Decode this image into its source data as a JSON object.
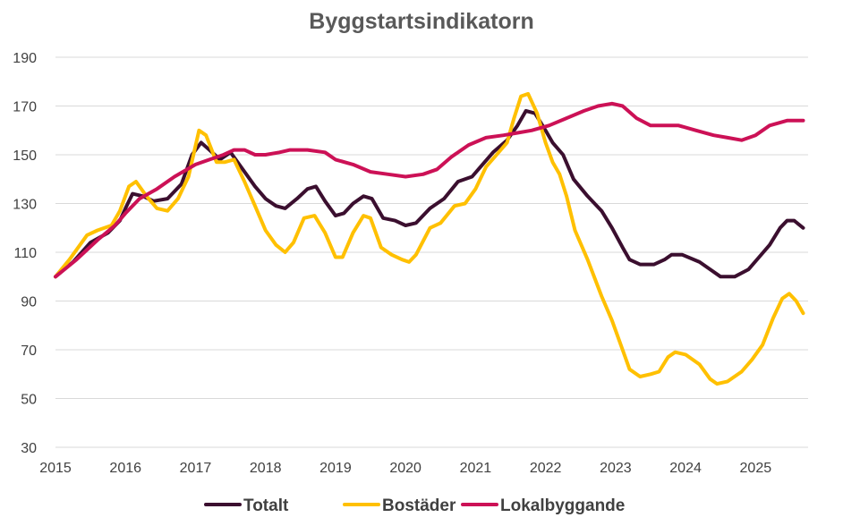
{
  "chart_data": {
    "type": "line",
    "title": "Byggstartsindikatorn",
    "xlabel": "",
    "ylabel": "",
    "xlim": [
      2015,
      2025.75
    ],
    "ylim": [
      30,
      190
    ],
    "yticks": [
      30,
      50,
      70,
      90,
      110,
      130,
      150,
      170,
      190
    ],
    "xticks": [
      "2015",
      "2016",
      "2017",
      "2018",
      "2019",
      "2020",
      "2021",
      "2022",
      "2023",
      "2024",
      "2025"
    ],
    "grid": true,
    "legend_position": "bottom",
    "series": [
      {
        "name": "Totalt",
        "color": "#3b0f2f",
        "points": [
          [
            2015.0,
            100
          ],
          [
            2015.25,
            106
          ],
          [
            2015.5,
            114
          ],
          [
            2015.75,
            118
          ],
          [
            2015.92,
            123
          ],
          [
            2016.0,
            128
          ],
          [
            2016.1,
            134
          ],
          [
            2016.25,
            133
          ],
          [
            2016.4,
            131
          ],
          [
            2016.6,
            132
          ],
          [
            2016.8,
            138
          ],
          [
            2016.95,
            150
          ],
          [
            2017.08,
            155
          ],
          [
            2017.2,
            152
          ],
          [
            2017.35,
            148
          ],
          [
            2017.5,
            151
          ],
          [
            2017.65,
            145
          ],
          [
            2017.85,
            137
          ],
          [
            2018.0,
            132
          ],
          [
            2018.15,
            129
          ],
          [
            2018.28,
            128
          ],
          [
            2018.45,
            132
          ],
          [
            2018.6,
            136
          ],
          [
            2018.72,
            137
          ],
          [
            2018.85,
            131
          ],
          [
            2019.0,
            125
          ],
          [
            2019.12,
            126
          ],
          [
            2019.25,
            130
          ],
          [
            2019.4,
            133
          ],
          [
            2019.52,
            132
          ],
          [
            2019.68,
            124
          ],
          [
            2019.85,
            123
          ],
          [
            2020.0,
            121
          ],
          [
            2020.15,
            122
          ],
          [
            2020.35,
            128
          ],
          [
            2020.55,
            132
          ],
          [
            2020.75,
            139
          ],
          [
            2020.95,
            141
          ],
          [
            2021.1,
            146
          ],
          [
            2021.25,
            151
          ],
          [
            2021.45,
            156
          ],
          [
            2021.6,
            162
          ],
          [
            2021.72,
            168
          ],
          [
            2021.85,
            167
          ],
          [
            2022.0,
            160
          ],
          [
            2022.1,
            155
          ],
          [
            2022.25,
            150
          ],
          [
            2022.4,
            140
          ],
          [
            2022.6,
            133
          ],
          [
            2022.8,
            127
          ],
          [
            2022.95,
            120
          ],
          [
            2023.1,
            112
          ],
          [
            2023.2,
            107
          ],
          [
            2023.35,
            105
          ],
          [
            2023.55,
            105
          ],
          [
            2023.7,
            107
          ],
          [
            2023.8,
            109
          ],
          [
            2023.95,
            109
          ],
          [
            2024.2,
            106
          ],
          [
            2024.35,
            103
          ],
          [
            2024.5,
            100
          ],
          [
            2024.7,
            100
          ],
          [
            2024.9,
            103
          ],
          [
            2025.05,
            108
          ],
          [
            2025.2,
            113
          ],
          [
            2025.35,
            120
          ],
          [
            2025.45,
            123
          ],
          [
            2025.55,
            123
          ],
          [
            2025.68,
            120
          ]
        ]
      },
      {
        "name": "Bostäder",
        "color": "#ffc000",
        "points": [
          [
            2015.0,
            100
          ],
          [
            2015.2,
            107
          ],
          [
            2015.45,
            117
          ],
          [
            2015.6,
            119
          ],
          [
            2015.8,
            121
          ],
          [
            2015.92,
            127
          ],
          [
            2016.05,
            137
          ],
          [
            2016.15,
            139
          ],
          [
            2016.3,
            133
          ],
          [
            2016.45,
            128
          ],
          [
            2016.6,
            127
          ],
          [
            2016.75,
            132
          ],
          [
            2016.9,
            141
          ],
          [
            2017.05,
            160
          ],
          [
            2017.15,
            158
          ],
          [
            2017.3,
            147
          ],
          [
            2017.42,
            147
          ],
          [
            2017.55,
            148
          ],
          [
            2017.7,
            139
          ],
          [
            2017.85,
            129
          ],
          [
            2018.0,
            119
          ],
          [
            2018.15,
            113
          ],
          [
            2018.28,
            110
          ],
          [
            2018.4,
            114
          ],
          [
            2018.55,
            124
          ],
          [
            2018.7,
            125
          ],
          [
            2018.85,
            118
          ],
          [
            2019.0,
            108
          ],
          [
            2019.1,
            108
          ],
          [
            2019.25,
            118
          ],
          [
            2019.4,
            125
          ],
          [
            2019.5,
            124
          ],
          [
            2019.65,
            112
          ],
          [
            2019.8,
            109
          ],
          [
            2019.95,
            107
          ],
          [
            2020.05,
            106
          ],
          [
            2020.15,
            109
          ],
          [
            2020.35,
            120
          ],
          [
            2020.5,
            122
          ],
          [
            2020.7,
            129
          ],
          [
            2020.85,
            130
          ],
          [
            2021.0,
            136
          ],
          [
            2021.15,
            145
          ],
          [
            2021.3,
            150
          ],
          [
            2021.45,
            155
          ],
          [
            2021.55,
            165
          ],
          [
            2021.65,
            174
          ],
          [
            2021.75,
            175
          ],
          [
            2021.88,
            167
          ],
          [
            2022.0,
            155
          ],
          [
            2022.1,
            147
          ],
          [
            2022.2,
            142
          ],
          [
            2022.3,
            133
          ],
          [
            2022.42,
            119
          ],
          [
            2022.6,
            107
          ],
          [
            2022.8,
            92
          ],
          [
            2022.95,
            82
          ],
          [
            2023.1,
            70
          ],
          [
            2023.2,
            62
          ],
          [
            2023.35,
            59
          ],
          [
            2023.5,
            60
          ],
          [
            2023.62,
            61
          ],
          [
            2023.75,
            67
          ],
          [
            2023.85,
            69
          ],
          [
            2024.0,
            68
          ],
          [
            2024.2,
            64
          ],
          [
            2024.35,
            58
          ],
          [
            2024.45,
            56
          ],
          [
            2024.6,
            57
          ],
          [
            2024.8,
            61
          ],
          [
            2024.95,
            66
          ],
          [
            2025.1,
            72
          ],
          [
            2025.25,
            83
          ],
          [
            2025.38,
            91
          ],
          [
            2025.48,
            93
          ],
          [
            2025.58,
            90
          ],
          [
            2025.68,
            85
          ]
        ]
      },
      {
        "name": "Lokalbyggande",
        "color": "#cc1156",
        "points": [
          [
            2015.0,
            100
          ],
          [
            2015.3,
            107
          ],
          [
            2015.6,
            115
          ],
          [
            2015.85,
            121
          ],
          [
            2016.0,
            126
          ],
          [
            2016.2,
            132
          ],
          [
            2016.45,
            136
          ],
          [
            2016.7,
            141
          ],
          [
            2017.0,
            146
          ],
          [
            2017.2,
            148
          ],
          [
            2017.4,
            150
          ],
          [
            2017.55,
            152
          ],
          [
            2017.7,
            152
          ],
          [
            2017.85,
            150
          ],
          [
            2018.0,
            150
          ],
          [
            2018.2,
            151
          ],
          [
            2018.35,
            152
          ],
          [
            2018.6,
            152
          ],
          [
            2018.85,
            151
          ],
          [
            2019.0,
            148
          ],
          [
            2019.25,
            146
          ],
          [
            2019.5,
            143
          ],
          [
            2019.75,
            142
          ],
          [
            2020.0,
            141
          ],
          [
            2020.25,
            142
          ],
          [
            2020.45,
            144
          ],
          [
            2020.65,
            149
          ],
          [
            2020.9,
            154
          ],
          [
            2021.15,
            157
          ],
          [
            2021.4,
            158
          ],
          [
            2021.6,
            159
          ],
          [
            2021.8,
            160
          ],
          [
            2022.05,
            162
          ],
          [
            2022.3,
            165
          ],
          [
            2022.55,
            168
          ],
          [
            2022.75,
            170
          ],
          [
            2022.95,
            171
          ],
          [
            2023.1,
            170
          ],
          [
            2023.3,
            165
          ],
          [
            2023.5,
            162
          ],
          [
            2023.7,
            162
          ],
          [
            2023.9,
            162
          ],
          [
            2024.15,
            160
          ],
          [
            2024.4,
            158
          ],
          [
            2024.6,
            157
          ],
          [
            2024.8,
            156
          ],
          [
            2025.0,
            158
          ],
          [
            2025.2,
            162
          ],
          [
            2025.45,
            164
          ],
          [
            2025.68,
            164
          ]
        ]
      }
    ]
  }
}
